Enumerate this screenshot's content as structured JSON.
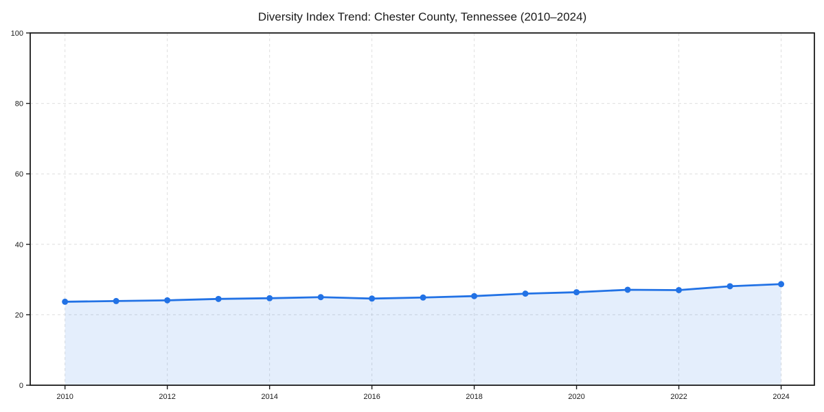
{
  "title": "Diversity Index Trend: Chester County, Tennessee (2010–2024)",
  "chart_data": {
    "type": "line",
    "area_fill": true,
    "title": "Diversity Index Trend: Chester County, Tennessee (2010–2024)",
    "series_name": "Diversity Index",
    "x": [
      2010,
      2011,
      2012,
      2013,
      2014,
      2015,
      2016,
      2017,
      2018,
      2019,
      2020,
      2021,
      2022,
      2023,
      2024
    ],
    "values": [
      23.7,
      23.9,
      24.1,
      24.5,
      24.7,
      25.0,
      24.6,
      24.9,
      25.3,
      26.0,
      26.4,
      27.1,
      27.0,
      28.1,
      28.7
    ],
    "xlabel": "",
    "ylabel": "",
    "xlim": [
      2009.32,
      2024.65
    ],
    "ylim": [
      0,
      100
    ],
    "xticks": [
      2010,
      2012,
      2014,
      2016,
      2018,
      2020,
      2022,
      2024
    ],
    "yticks": [
      0,
      20,
      40,
      60,
      80,
      100
    ],
    "grid": "dashed",
    "legend": "none",
    "colors": {
      "line": "#2272e5",
      "marker": "#2272e5",
      "area": "#2272e5",
      "area_opacity": 0.12,
      "grid": "#dedede",
      "spine": "#1a1a1a",
      "text": "#1a1a1a",
      "background": "#ffffff"
    }
  }
}
